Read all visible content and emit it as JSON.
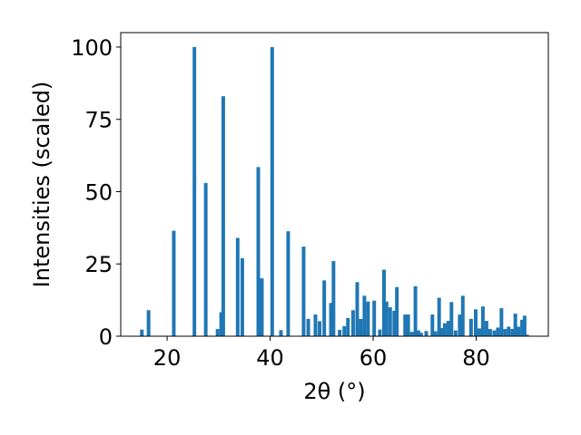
{
  "chart_data": {
    "type": "bar",
    "xlabel": "2θ (°)",
    "ylabel": "Intensities (scaled)",
    "xlim": [
      11.0,
      94.0
    ],
    "ylim": [
      0,
      105
    ],
    "xticks": [
      "20",
      "40",
      "60",
      "80"
    ],
    "yticks": [
      "0",
      "25",
      "50",
      "75",
      "100"
    ],
    "grid": false,
    "bar_color": "#1f77b4",
    "bar_width": 0.7,
    "x": [
      15.1,
      16.4,
      21.3,
      25.3,
      27.5,
      29.8,
      30.5,
      30.9,
      33.7,
      34.6,
      37.7,
      38.4,
      40.4,
      42.1,
      43.5,
      46.5,
      47.4,
      48.8,
      49.6,
      50.5,
      51.8,
      52.3,
      53.5,
      54.4,
      55.1,
      56.1,
      56.9,
      57.6,
      58.3,
      59.0,
      60.2,
      61.3,
      62.1,
      62.6,
      63.3,
      64.1,
      64.6,
      66.2,
      66.8,
      67.5,
      68.2,
      68.8,
      69.3,
      70.3,
      71.5,
      72.1,
      72.8,
      73.4,
      73.9,
      74.6,
      75.2,
      76.0,
      76.8,
      77.4,
      79.0,
      79.9,
      80.6,
      81.3,
      82.0,
      82.7,
      83.5,
      84.2,
      84.9,
      85.6,
      86.3,
      87.0,
      87.6,
      88.2,
      88.9,
      89.4,
      89.9
    ],
    "values": [
      2.3,
      9.0,
      36.5,
      100.0,
      53.0,
      2.5,
      8.3,
      83.0,
      34.0,
      27.0,
      58.5,
      20.0,
      100.0,
      2.1,
      36.3,
      31.0,
      6.0,
      7.5,
      5.2,
      19.3,
      11.5,
      26.0,
      2.2,
      3.5,
      6.3,
      9.0,
      18.7,
      6.0,
      14.0,
      12.0,
      12.3,
      2.3,
      23.0,
      12.0,
      10.0,
      8.8,
      17.0,
      7.5,
      7.5,
      1.5,
      17.3,
      2.0,
      1.2,
      1.8,
      7.5,
      1.7,
      13.3,
      2.8,
      4.5,
      5.3,
      11.8,
      2.0,
      7.5,
      14.0,
      6.0,
      9.3,
      2.7,
      10.3,
      5.3,
      2.5,
      2.0,
      3.0,
      9.7,
      2.5,
      3.3,
      2.5,
      7.8,
      3.3,
      5.7,
      7.1,
      0.5
    ]
  }
}
